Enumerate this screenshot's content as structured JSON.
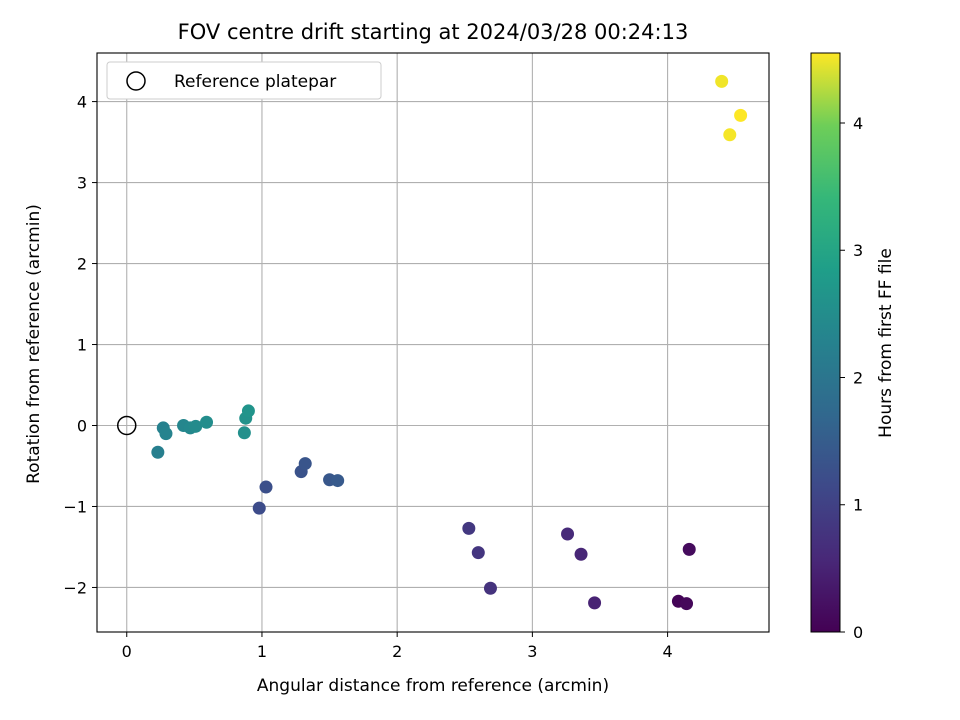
{
  "chart_data": {
    "type": "scatter",
    "title": "FOV centre drift starting at 2024/03/28 00:24:13",
    "xlabel": "Angular distance from reference (arcmin)",
    "ylabel": "Rotation from reference (arcmin)",
    "xlim": [
      -0.22,
      4.75
    ],
    "ylim": [
      -2.55,
      4.6
    ],
    "xticks": [
      0,
      1,
      2,
      3,
      4
    ],
    "yticks": [
      -2,
      -1,
      0,
      1,
      2,
      3,
      4
    ],
    "xtick_labels": [
      "0",
      "1",
      "2",
      "3",
      "4"
    ],
    "ytick_labels": [
      "−2",
      "−1",
      "0",
      "1",
      "2",
      "3",
      "4"
    ],
    "grid": true,
    "legend": {
      "placement": "top-left",
      "entries": [
        "Reference platepar"
      ]
    },
    "reference_point": {
      "x": 0,
      "y": 0
    },
    "colorbar": {
      "label": "Hours from first FF file",
      "range": [
        0,
        4.55
      ],
      "ticks": [
        0,
        1,
        2,
        3,
        4
      ],
      "tick_labels": [
        "0",
        "1",
        "2",
        "3",
        "4"
      ],
      "colormap": "viridis"
    },
    "points": [
      {
        "x": 4.08,
        "y": -2.17,
        "hours": 0.05
      },
      {
        "x": 4.14,
        "y": -2.2,
        "hours": 0.1
      },
      {
        "x": 4.16,
        "y": -1.53,
        "hours": 0.15
      },
      {
        "x": 3.46,
        "y": -2.19,
        "hours": 0.5
      },
      {
        "x": 3.36,
        "y": -1.59,
        "hours": 0.55
      },
      {
        "x": 3.26,
        "y": -1.34,
        "hours": 0.6
      },
      {
        "x": 2.69,
        "y": -2.01,
        "hours": 0.75
      },
      {
        "x": 2.6,
        "y": -1.57,
        "hours": 0.8
      },
      {
        "x": 2.53,
        "y": -1.27,
        "hours": 0.85
      },
      {
        "x": 0.98,
        "y": -1.02,
        "hours": 1.2
      },
      {
        "x": 1.03,
        "y": -0.76,
        "hours": 1.25
      },
      {
        "x": 1.29,
        "y": -0.57,
        "hours": 1.3
      },
      {
        "x": 1.32,
        "y": -0.47,
        "hours": 1.35
      },
      {
        "x": 1.5,
        "y": -0.67,
        "hours": 1.4
      },
      {
        "x": 1.56,
        "y": -0.68,
        "hours": 1.45
      },
      {
        "x": 0.23,
        "y": -0.33,
        "hours": 2.2
      },
      {
        "x": 0.27,
        "y": -0.03,
        "hours": 2.25
      },
      {
        "x": 0.29,
        "y": -0.1,
        "hours": 2.3
      },
      {
        "x": 0.42,
        "y": 0.0,
        "hours": 2.35
      },
      {
        "x": 0.47,
        "y": -0.03,
        "hours": 2.4
      },
      {
        "x": 0.51,
        "y": -0.01,
        "hours": 2.45
      },
      {
        "x": 0.59,
        "y": 0.04,
        "hours": 2.5
      },
      {
        "x": 0.87,
        "y": -0.09,
        "hours": 2.55
      },
      {
        "x": 0.88,
        "y": 0.09,
        "hours": 2.6
      },
      {
        "x": 0.9,
        "y": 0.18,
        "hours": 2.65
      },
      {
        "x": 4.4,
        "y": 4.25,
        "hours": 4.5
      },
      {
        "x": 4.46,
        "y": 3.59,
        "hours": 4.52
      },
      {
        "x": 4.54,
        "y": 3.83,
        "hours": 4.55
      }
    ]
  }
}
